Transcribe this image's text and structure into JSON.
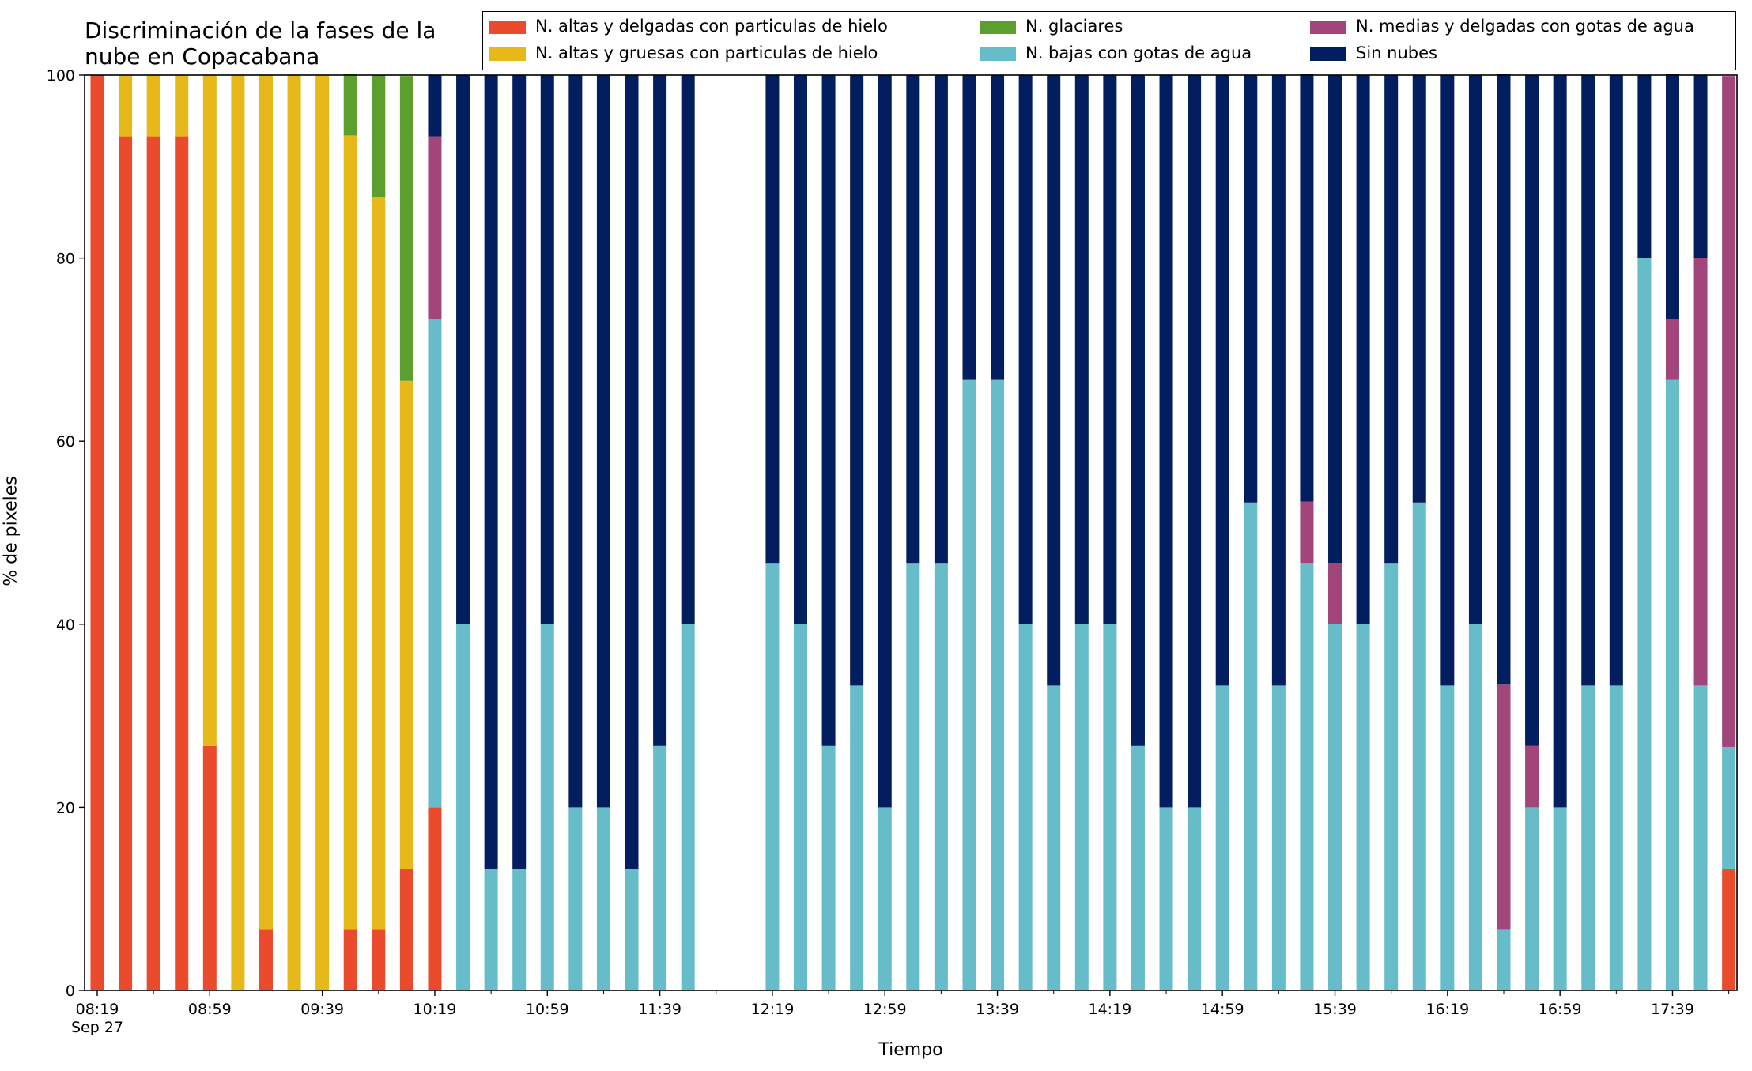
{
  "chart_data": {
    "type": "bar",
    "stacked": true,
    "title": "Discriminación de la fases de la\nnube en Copacabana",
    "xlabel": "Tiempo",
    "ylabel": "% de pixeles",
    "ylim": [
      0,
      100
    ],
    "yticks": [
      0,
      20,
      40,
      60,
      80,
      100
    ],
    "x_start": "08:19",
    "x_step_minutes": 10,
    "x_date_label": "Sep 27",
    "xtick_labels": [
      "08:19",
      "08:59",
      "09:39",
      "10:19",
      "10:59",
      "11:39",
      "12:19",
      "12:59",
      "13:39",
      "14:19",
      "14:59",
      "15:39",
      "16:19",
      "16:59",
      "17:39"
    ],
    "legend_position": "top-right",
    "grid": false,
    "series": [
      {
        "name": "N. altas y delgadas con particulas de hielo",
        "color": "#ea4b2c",
        "values": [
          100,
          93.3,
          93.3,
          93.3,
          26.7,
          0,
          6.7,
          0,
          0,
          6.7,
          6.7,
          13.3,
          20,
          0,
          0,
          0,
          0,
          0,
          0,
          0,
          0,
          0,
          0,
          null,
          0,
          0,
          0,
          0,
          0,
          0,
          0,
          0,
          0,
          0,
          0,
          0,
          0,
          0,
          0,
          0,
          0,
          0,
          0,
          0,
          0,
          0,
          0,
          0,
          0,
          0,
          0,
          0,
          0,
          0,
          0,
          0,
          0,
          0,
          13.3
        ]
      },
      {
        "name": "N. altas y gruesas con particulas de hielo",
        "color": "#e6b81a",
        "values": [
          0,
          6.7,
          6.7,
          6.7,
          73.3,
          100,
          93.3,
          100,
          100,
          86.7,
          80,
          53.3,
          0,
          0,
          0,
          0,
          0,
          0,
          0,
          0,
          0,
          0,
          0,
          null,
          0,
          0,
          0,
          0,
          0,
          0,
          0,
          0,
          0,
          0,
          0,
          0,
          0,
          0,
          0,
          0,
          0,
          0,
          0,
          0,
          0,
          0,
          0,
          0,
          0,
          0,
          0,
          0,
          0,
          0,
          0,
          0,
          0,
          0,
          0
        ]
      },
      {
        "name": "N. glaciares",
        "color": "#5d9f2e",
        "values": [
          0,
          0,
          0,
          0,
          0,
          0,
          0,
          0,
          0,
          6.7,
          13.3,
          33.3,
          0,
          0,
          0,
          0,
          0,
          0,
          0,
          0,
          0,
          0,
          0,
          null,
          0,
          0,
          0,
          0,
          0,
          0,
          0,
          0,
          0,
          0,
          0,
          0,
          0,
          0,
          0,
          0,
          0,
          0,
          0,
          0,
          0,
          0,
          0,
          0,
          0,
          0,
          0,
          0,
          0,
          0,
          0,
          0,
          0,
          0,
          0
        ]
      },
      {
        "name": "N. bajas con gotas de agua",
        "color": "#66bdc9",
        "values": [
          0,
          0,
          0,
          0,
          0,
          0,
          0,
          0,
          0,
          0,
          0,
          0,
          53.3,
          40,
          13.3,
          13.3,
          40,
          20,
          20,
          13.3,
          26.7,
          40,
          null,
          null,
          46.7,
          40,
          26.7,
          33.3,
          20,
          46.7,
          46.7,
          66.7,
          66.7,
          40,
          33.3,
          40,
          40,
          26.7,
          20,
          20,
          33.3,
          53.3,
          33.3,
          46.7,
          40,
          40,
          46.7,
          53.3,
          33.3,
          40,
          6.7,
          20,
          20,
          33.3,
          33.3,
          80,
          66.7,
          33.3,
          13.3
        ]
      },
      {
        "name": "N. medias y delgadas con gotas de agua",
        "color": "#a1457a",
        "values": [
          0,
          0,
          0,
          0,
          0,
          0,
          0,
          0,
          0,
          0,
          0,
          0,
          20,
          0,
          0,
          0,
          0,
          0,
          0,
          0,
          0,
          0,
          null,
          null,
          0,
          0,
          0,
          0,
          0,
          0,
          0,
          0,
          0,
          0,
          0,
          0,
          0,
          0,
          0,
          0,
          0,
          0,
          0,
          6.7,
          6.7,
          0,
          0,
          0,
          0,
          0,
          26.7,
          6.7,
          0,
          0,
          0,
          0,
          6.7,
          46.7,
          73.3
        ]
      },
      {
        "name": "Sin nubes",
        "color": "#021e5e",
        "values": [
          0,
          0,
          0,
          0,
          0,
          0,
          0,
          0,
          0,
          0,
          0,
          0,
          6.7,
          60,
          86.7,
          86.7,
          60,
          80,
          80,
          86.7,
          73.3,
          60,
          null,
          null,
          53.3,
          60,
          73.3,
          66.7,
          80,
          53.3,
          53.3,
          33.3,
          33.3,
          60,
          66.7,
          60,
          60,
          73.3,
          80,
          80,
          66.7,
          46.7,
          66.7,
          46.7,
          53.3,
          60,
          53.3,
          46.7,
          66.7,
          60,
          66.7,
          73.3,
          80,
          66.7,
          66.7,
          20,
          26.7,
          20,
          0
        ]
      }
    ]
  }
}
